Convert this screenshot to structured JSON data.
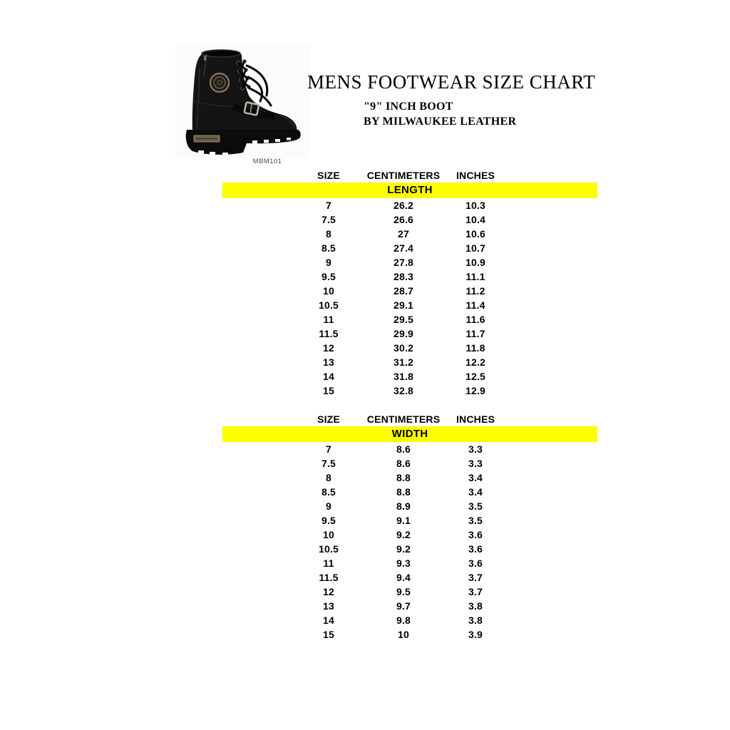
{
  "header": {
    "title": "MENS FOOTWEAR SIZE CHART",
    "subtitle1": "\"9\" INCH BOOT",
    "subtitle2": "BY MILWAUKEE LEATHER",
    "product_code": "MBM101",
    "product_photo": "black-leather-lace-up-buckle-boot-side-view"
  },
  "colors": {
    "section_highlight": "#FFFF00",
    "text": "#000000"
  },
  "chart_data": [
    {
      "type": "table",
      "title": "LENGTH",
      "columns": [
        "SIZE",
        "CENTIMETERS",
        "INCHES"
      ],
      "rows": [
        [
          "7",
          "26.2",
          "10.3"
        ],
        [
          "7.5",
          "26.6",
          "10.4"
        ],
        [
          "8",
          "27",
          "10.6"
        ],
        [
          "8.5",
          "27.4",
          "10.7"
        ],
        [
          "9",
          "27.8",
          "10.9"
        ],
        [
          "9.5",
          "28.3",
          "11.1"
        ],
        [
          "10",
          "28.7",
          "11.2"
        ],
        [
          "10.5",
          "29.1",
          "11.4"
        ],
        [
          "11",
          "29.5",
          "11.6"
        ],
        [
          "11.5",
          "29.9",
          "11.7"
        ],
        [
          "12",
          "30.2",
          "11.8"
        ],
        [
          "13",
          "31.2",
          "12.2"
        ],
        [
          "14",
          "31.8",
          "12.5"
        ],
        [
          "15",
          "32.8",
          "12.9"
        ]
      ]
    },
    {
      "type": "table",
      "title": "WIDTH",
      "columns": [
        "SIZE",
        "CENTIMETERS",
        "INCHES"
      ],
      "rows": [
        [
          "7",
          "8.6",
          "3.3"
        ],
        [
          "7.5",
          "8.6",
          "3.3"
        ],
        [
          "8",
          "8.8",
          "3.4"
        ],
        [
          "8.5",
          "8.8",
          "3.4"
        ],
        [
          "9",
          "8.9",
          "3.5"
        ],
        [
          "9.5",
          "9.1",
          "3.5"
        ],
        [
          "10",
          "9.2",
          "3.6"
        ],
        [
          "10.5",
          "9.2",
          "3.6"
        ],
        [
          "11",
          "9.3",
          "3.6"
        ],
        [
          "11.5",
          "9.4",
          "3.7"
        ],
        [
          "12",
          "9.5",
          "3.7"
        ],
        [
          "13",
          "9.7",
          "3.8"
        ],
        [
          "14",
          "9.8",
          "3.8"
        ],
        [
          "15",
          "10",
          "3.9"
        ]
      ]
    }
  ]
}
